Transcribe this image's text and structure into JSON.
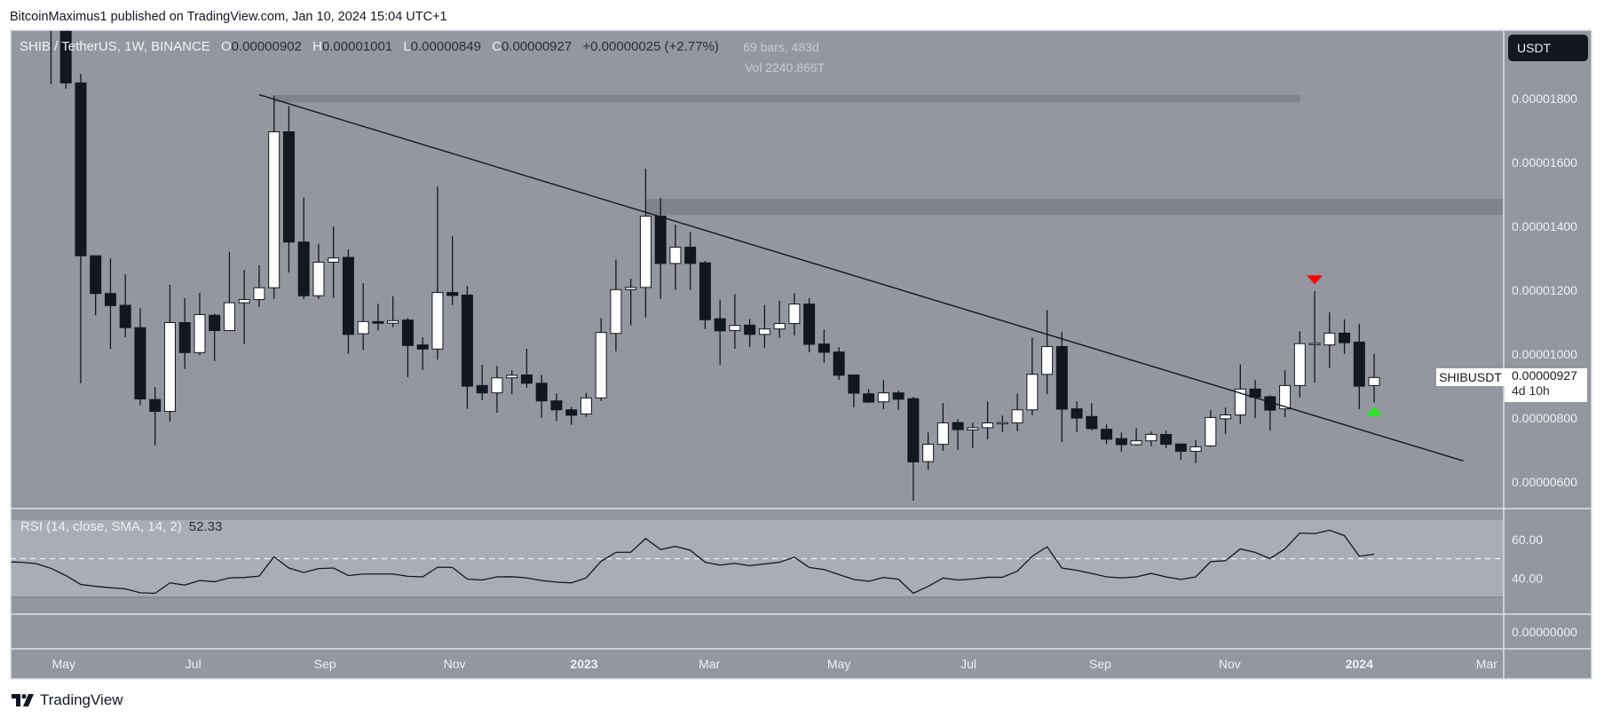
{
  "publisher": "BitcoinMaximus1 published on TradingView.com, Jan 10, 2024 15:04 UTC+1",
  "legend": {
    "symbol": "SHIB / TetherUS, 1W, BINANCE",
    "o_label": "O",
    "o": "0.00000902",
    "h_label": "H",
    "h": "0.00001001",
    "l_label": "L",
    "l": "0.00000849",
    "c_label": "C",
    "c": "0.00000927",
    "change": "+0.00000025 (+2.77%)"
  },
  "measure": {
    "bars": "69 bars, 483d",
    "vol": "Vol 2240.866T"
  },
  "currency_button": "USDT",
  "last_price": {
    "symbol": "SHIBUSDT",
    "value": "0.00000927",
    "countdown": "4d 10h"
  },
  "rsi": {
    "legend": "RSI (14, close, SMA, 14, 2)",
    "value": "52.33",
    "ticks": [
      "60.00",
      "40.00"
    ]
  },
  "lower_pane_tick": "0.00000000",
  "footer_logo": "TradingView",
  "colors": {
    "background": "#94979f",
    "rsi_band": "#aaadb5",
    "zone": "#80838b",
    "candle_down": "#131722",
    "candle_up": "#ffffff",
    "marker_sell": "#ff0000",
    "marker_buy": "#22ee22",
    "axis_text": "#eef0f4"
  },
  "chart_data": {
    "type": "candlestick",
    "interval": "1W",
    "xlim": [
      "2022-04-06",
      "2024-03-09"
    ],
    "ylim": [
      5.17e-06,
      2.014e-05
    ],
    "y_ticks": [
      "0.00001800",
      "0.00001600",
      "0.00001400",
      "0.00001200",
      "0.00001000",
      "0.00000800",
      "0.00000600"
    ],
    "x_ticks": [
      {
        "label": "May",
        "date": "2022-05-01",
        "bold": false
      },
      {
        "label": "Jul",
        "date": "2022-07-01",
        "bold": false
      },
      {
        "label": "Sep",
        "date": "2022-09-01",
        "bold": false
      },
      {
        "label": "Nov",
        "date": "2022-11-01",
        "bold": false
      },
      {
        "label": "2023",
        "date": "2023-01-01",
        "bold": true
      },
      {
        "label": "Mar",
        "date": "2023-03-01",
        "bold": false
      },
      {
        "label": "May",
        "date": "2023-05-01",
        "bold": false
      },
      {
        "label": "Jul",
        "date": "2023-07-01",
        "bold": false
      },
      {
        "label": "Sep",
        "date": "2023-09-01",
        "bold": false
      },
      {
        "label": "Nov",
        "date": "2023-11-01",
        "bold": false
      },
      {
        "label": "2024",
        "date": "2024-01-01",
        "bold": true
      },
      {
        "label": "Mar",
        "date": "2024-03-01",
        "bold": false
      }
    ],
    "ohlc_columns": [
      "date",
      "open",
      "high",
      "low",
      "close"
    ],
    "ohlc": [
      [
        "2022-04-25",
        2.45e-05,
        2.5e-05,
        1.845e-05,
        2.09e-05
      ],
      [
        "2022-05-02",
        2.09e-05,
        2.18e-05,
        1.831e-05,
        1.849e-05
      ],
      [
        "2022-05-09",
        1.849e-05,
        1.877e-05,
        9.09e-06,
        1.308e-05
      ],
      [
        "2022-05-16",
        1.308e-05,
        1.308e-05,
        1.122e-05,
        1.19e-05
      ],
      [
        "2022-05-23",
        1.19e-05,
        1.3e-05,
        1.016e-05,
        1.152e-05
      ],
      [
        "2022-05-30",
        1.153e-05,
        1.25e-05,
        1.053e-05,
        1.083e-05
      ],
      [
        "2022-06-06",
        1.083e-05,
        1.144e-05,
        8.4e-06,
        8.6e-06
      ],
      [
        "2022-06-13",
        8.58e-06,
        8.97e-06,
        7.15e-06,
        8.21e-06
      ],
      [
        "2022-06-20",
        8.21e-06,
        1.217e-05,
        7.89e-06,
        1.099e-05
      ],
      [
        "2022-06-27",
        1.099e-05,
        1.175e-05,
        9.54e-06,
        1.005e-05
      ],
      [
        "2022-07-04",
        1.005e-05,
        1.192e-05,
        9.97e-06,
        1.124e-05
      ],
      [
        "2022-07-11",
        1.122e-05,
        1.127e-05,
        9.79e-06,
        1.074e-05
      ],
      [
        "2022-07-18",
        1.074e-05,
        1.32e-05,
        1.074e-05,
        1.161e-05
      ],
      [
        "2022-07-25",
        1.161e-05,
        1.264e-05,
        1.032e-05,
        1.171e-05
      ],
      [
        "2022-08-01",
        1.171e-05,
        1.278e-05,
        1.148e-05,
        1.208e-05
      ],
      [
        "2022-08-08",
        1.208e-05,
        1.81e-05,
        1.173e-05,
        1.696e-05
      ],
      [
        "2022-08-15",
        1.696e-05,
        1.777e-05,
        1.255e-05,
        1.351e-05
      ],
      [
        "2022-08-22",
        1.351e-05,
        1.49e-05,
        1.173e-05,
        1.183e-05
      ],
      [
        "2022-08-29",
        1.183e-05,
        1.345e-05,
        1.173e-05,
        1.288e-05
      ],
      [
        "2022-09-05",
        1.288e-05,
        1.4e-05,
        1.176e-05,
        1.301e-05
      ],
      [
        "2022-09-12",
        1.303e-05,
        1.328e-05,
        1.002e-05,
        1.062e-05
      ],
      [
        "2022-09-19",
        1.064e-05,
        1.222e-05,
        1.013e-05,
        1.102e-05
      ],
      [
        "2022-09-26",
        1.102e-05,
        1.158e-05,
        1.074e-05,
        1.097e-05
      ],
      [
        "2022-10-03",
        1.097e-05,
        1.181e-05,
        1.085e-05,
        1.105e-05
      ],
      [
        "2022-10-10",
        1.107e-05,
        1.113e-05,
        9.28e-06,
        1.027e-05
      ],
      [
        "2022-10-17",
        1.029e-05,
        1.053e-05,
        9.51e-06,
        1.016e-05
      ],
      [
        "2022-10-24",
        1.016e-05,
        1.525e-05,
        9.83e-06,
        1.193e-05
      ],
      [
        "2022-10-31",
        1.193e-05,
        1.369e-05,
        1.154e-05,
        1.184e-05
      ],
      [
        "2022-11-07",
        1.185e-05,
        1.213e-05,
        8.29e-06,
        9e-06
      ],
      [
        "2022-11-14",
        9.02e-06,
        9.67e-06,
        8.56e-06,
        8.79e-06
      ],
      [
        "2022-11-21",
        8.79e-06,
        9.63e-06,
        8.17e-06,
        9.26e-06
      ],
      [
        "2022-11-28",
        9.26e-06,
        9.5e-06,
        8.75e-06,
        9.34e-06
      ],
      [
        "2022-12-05",
        9.35e-06,
        1.017e-05,
        8.95e-06,
        9.09e-06
      ],
      [
        "2022-12-12",
        9.09e-06,
        9.35e-06,
        8.01e-06,
        8.54e-06
      ],
      [
        "2022-12-19",
        8.54e-06,
        8.77e-06,
        7.91e-06,
        8.26e-06
      ],
      [
        "2022-12-26",
        8.26e-06,
        8.35e-06,
        7.79e-06,
        8.09e-06
      ],
      [
        "2023-01-02",
        8.13e-06,
        8.79e-06,
        8.04e-06,
        8.63e-06
      ],
      [
        "2023-01-09",
        8.63e-06,
        1.113e-05,
        8.54e-06,
        1.068e-05
      ],
      [
        "2023-01-16",
        1.065e-05,
        1.296e-05,
        1.009e-05,
        1.202e-05
      ],
      [
        "2023-01-23",
        1.202e-05,
        1.236e-05,
        1.09e-05,
        1.209e-05
      ],
      [
        "2023-01-30",
        1.209e-05,
        1.58e-05,
        1.115e-05,
        1.432e-05
      ],
      [
        "2023-02-06",
        1.432e-05,
        1.489e-05,
        1.173e-05,
        1.284e-05
      ],
      [
        "2023-02-13",
        1.284e-05,
        1.405e-05,
        1.201e-05,
        1.335e-05
      ],
      [
        "2023-02-20",
        1.335e-05,
        1.383e-05,
        1.201e-05,
        1.284e-05
      ],
      [
        "2023-02-27",
        1.286e-05,
        1.292e-05,
        1.079e-05,
        1.108e-05
      ],
      [
        "2023-03-06",
        1.111e-05,
        1.171e-05,
        9.67e-06,
        1.073e-05
      ],
      [
        "2023-03-13",
        1.074e-05,
        1.188e-05,
        1.017e-05,
        1.09e-05
      ],
      [
        "2023-03-20",
        1.091e-05,
        1.11e-05,
        1.023e-05,
        1.062e-05
      ],
      [
        "2023-03-27",
        1.062e-05,
        1.154e-05,
        1.02e-05,
        1.079e-05
      ],
      [
        "2023-04-03",
        1.079e-05,
        1.167e-05,
        1.051e-05,
        1.096e-05
      ],
      [
        "2023-04-10",
        1.096e-05,
        1.191e-05,
        1.059e-05,
        1.157e-05
      ],
      [
        "2023-04-17",
        1.157e-05,
        1.175e-05,
        1.006e-05,
        1.031e-05
      ],
      [
        "2023-04-24",
        1.032e-05,
        1.077e-05,
        9.73e-06,
        1.006e-05
      ],
      [
        "2023-05-01",
        1.007e-05,
        1.022e-05,
        9.2e-06,
        9.34e-06
      ],
      [
        "2023-05-08",
        9.35e-06,
        9.35e-06,
        8.34e-06,
        8.78e-06
      ],
      [
        "2023-05-15",
        8.76e-06,
        8.91e-06,
        8.47e-06,
        8.5e-06
      ],
      [
        "2023-05-22",
        8.51e-06,
        9.19e-06,
        8.28e-06,
        8.79e-06
      ],
      [
        "2023-05-29",
        8.79e-06,
        8.86e-06,
        8.25e-06,
        8.59e-06
      ],
      [
        "2023-06-05",
        8.61e-06,
        8.66e-06,
        5.42e-06,
        6.63e-06
      ],
      [
        "2023-06-12",
        6.64e-06,
        7.55e-06,
        6.38e-06,
        7.18e-06
      ],
      [
        "2023-06-19",
        7.18e-06,
        8.47e-06,
        6.98e-06,
        7.85e-06
      ],
      [
        "2023-06-26",
        7.86e-06,
        7.97e-06,
        7e-06,
        7.64e-06
      ],
      [
        "2023-07-03",
        7.63e-06,
        7.86e-06,
        7.06e-06,
        7.7e-06
      ],
      [
        "2023-07-10",
        7.7e-06,
        8.52e-06,
        7.34e-06,
        7.85e-06
      ],
      [
        "2023-07-17",
        7.85e-06,
        8.08e-06,
        7.56e-06,
        7.86e-06
      ],
      [
        "2023-07-24",
        7.85e-06,
        8.77e-06,
        7.59e-06,
        8.26e-06
      ],
      [
        "2023-07-31",
        8.26e-06,
        1.052e-05,
        8.09e-06,
        9.37e-06
      ],
      [
        "2023-08-07",
        9.37e-06,
        1.138e-05,
        8.75e-06,
        1.024e-05
      ],
      [
        "2023-08-14",
        1.024e-05,
        1.069e-05,
        7.25e-06,
        8.28e-06
      ],
      [
        "2023-08-21",
        8.29e-06,
        8.52e-06,
        7.56e-06,
        8e-06
      ],
      [
        "2023-08-28",
        8.05e-06,
        8.47e-06,
        7.62e-06,
        7.67e-06
      ],
      [
        "2023-09-04",
        7.65e-06,
        7.8e-06,
        7.19e-06,
        7.34e-06
      ],
      [
        "2023-09-11",
        7.36e-06,
        7.55e-06,
        6.95e-06,
        7.17e-06
      ],
      [
        "2023-09-18",
        7.17e-06,
        7.69e-06,
        7.14e-06,
        7.29e-06
      ],
      [
        "2023-09-25",
        7.29e-06,
        7.58e-06,
        7.12e-06,
        7.49e-06
      ],
      [
        "2023-10-02",
        7.49e-06,
        7.61e-06,
        7.06e-06,
        7.18e-06
      ],
      [
        "2023-10-09",
        7.19e-06,
        7.19e-06,
        6.7e-06,
        6.96e-06
      ],
      [
        "2023-10-16",
        6.96e-06,
        7.31e-06,
        6.59e-06,
        7.1e-06
      ],
      [
        "2023-10-23",
        7.13e-06,
        8.25e-06,
        7.1e-06,
        8.02e-06
      ],
      [
        "2023-10-30",
        7.98e-06,
        8.33e-06,
        7.5e-06,
        8.1e-06
      ],
      [
        "2023-11-06",
        8.1e-06,
        9.68e-06,
        7.82e-06,
        8.91e-06
      ],
      [
        "2023-11-13",
        8.91e-06,
        9.2e-06,
        8e-06,
        8.65e-06
      ],
      [
        "2023-11-20",
        8.67e-06,
        8.71e-06,
        7.61e-06,
        8.25e-06
      ],
      [
        "2023-11-27",
        8.29e-06,
        9.5e-06,
        8.03e-06,
        9.02e-06
      ],
      [
        "2023-12-04",
        9.02e-06,
        1.072e-05,
        8.65e-06,
        1.033e-05
      ],
      [
        "2023-12-11",
        1.032e-05,
        1.197e-05,
        9.11e-06,
        1.034e-05
      ],
      [
        "2023-12-18",
        1.029e-05,
        1.131e-05,
        9.56e-06,
        1.066e-05
      ],
      [
        "2023-12-25",
        1.066e-05,
        1.109e-05,
        1.001e-05,
        1.036e-05
      ],
      [
        "2024-01-01",
        1.038e-05,
        1.095e-05,
        8.28e-06,
        9e-06
      ],
      [
        "2024-01-08",
        9.02e-06,
        1.001e-05,
        8.49e-06,
        9.27e-06
      ]
    ],
    "trendline": {
      "start": [
        "2022-08-01",
        1.812e-05
      ],
      "end": [
        "2024-02-19",
        6.66e-06
      ]
    },
    "zones": [
      {
        "from": "2022-08-08",
        "to": "2023-12-04",
        "top": 1.811e-05,
        "bottom": 1.789e-05,
        "extend_right": false
      },
      {
        "from": "2023-01-30",
        "to": null,
        "top": 1.486e-05,
        "bottom": 1.436e-05,
        "extend_right": true
      }
    ],
    "markers": [
      {
        "date": "2023-12-11",
        "price": 1.219e-05,
        "shape": "triangle-down",
        "color": "#ff0000"
      },
      {
        "date": "2024-01-08",
        "price": 8.36e-06,
        "shape": "triangle-up",
        "color": "#22ee22"
      }
    ],
    "rsi_ylim": [
      21.3,
      76
    ],
    "rsi_band": [
      30,
      70
    ],
    "rsi_mid": 50,
    "rsi_series": [
      [
        "2022-04-04",
        48.3
      ],
      [
        "2022-04-11",
        48.2
      ],
      [
        "2022-04-18",
        47.5
      ],
      [
        "2022-04-25",
        45.0
      ],
      [
        "2022-05-02",
        41.3
      ],
      [
        "2022-05-09",
        36.7
      ],
      [
        "2022-05-16",
        35.7
      ],
      [
        "2022-05-23",
        35.0
      ],
      [
        "2022-05-30",
        34.4
      ],
      [
        "2022-06-06",
        32.4
      ],
      [
        "2022-06-13",
        32.1
      ],
      [
        "2022-06-20",
        37.5
      ],
      [
        "2022-06-27",
        36.4
      ],
      [
        "2022-07-04",
        38.7
      ],
      [
        "2022-07-11",
        38.1
      ],
      [
        "2022-07-18",
        40.1
      ],
      [
        "2022-07-25",
        40.3
      ],
      [
        "2022-08-01",
        41.0
      ],
      [
        "2022-08-08",
        51.0
      ],
      [
        "2022-08-15",
        45.2
      ],
      [
        "2022-08-22",
        42.9
      ],
      [
        "2022-08-29",
        44.9
      ],
      [
        "2022-09-05",
        45.2
      ],
      [
        "2022-09-12",
        41.3
      ],
      [
        "2022-09-19",
        42.1
      ],
      [
        "2022-09-26",
        42.1
      ],
      [
        "2022-10-03",
        42.1
      ],
      [
        "2022-10-10",
        40.9
      ],
      [
        "2022-10-17",
        40.6
      ],
      [
        "2022-10-24",
        45.6
      ],
      [
        "2022-10-31",
        45.5
      ],
      [
        "2022-11-07",
        39.5
      ],
      [
        "2022-11-14",
        39.0
      ],
      [
        "2022-11-21",
        40.6
      ],
      [
        "2022-11-28",
        40.7
      ],
      [
        "2022-12-05",
        40.1
      ],
      [
        "2022-12-12",
        38.7
      ],
      [
        "2022-12-19",
        37.9
      ],
      [
        "2022-12-26",
        37.5
      ],
      [
        "2023-01-02",
        40.1
      ],
      [
        "2023-01-09",
        48.7
      ],
      [
        "2023-01-16",
        53.3
      ],
      [
        "2023-01-23",
        53.4
      ],
      [
        "2023-01-30",
        60.5
      ],
      [
        "2023-02-06",
        54.8
      ],
      [
        "2023-02-13",
        56.4
      ],
      [
        "2023-02-20",
        54.4
      ],
      [
        "2023-02-27",
        48.2
      ],
      [
        "2023-03-06",
        46.7
      ],
      [
        "2023-03-13",
        47.6
      ],
      [
        "2023-03-20",
        46.4
      ],
      [
        "2023-03-27",
        47.3
      ],
      [
        "2023-04-03",
        48.2
      ],
      [
        "2023-04-10",
        50.8
      ],
      [
        "2023-04-17",
        45.5
      ],
      [
        "2023-04-24",
        44.4
      ],
      [
        "2023-05-01",
        41.8
      ],
      [
        "2023-05-08",
        39.3
      ],
      [
        "2023-05-15",
        38.3
      ],
      [
        "2023-05-22",
        40.3
      ],
      [
        "2023-05-29",
        39.4
      ],
      [
        "2023-06-05",
        32.1
      ],
      [
        "2023-06-12",
        35.7
      ],
      [
        "2023-06-19",
        40.0
      ],
      [
        "2023-06-26",
        39.0
      ],
      [
        "2023-07-03",
        39.5
      ],
      [
        "2023-07-10",
        40.4
      ],
      [
        "2023-07-17",
        40.4
      ],
      [
        "2023-07-24",
        43.6
      ],
      [
        "2023-07-31",
        51.3
      ],
      [
        "2023-08-07",
        56.2
      ],
      [
        "2023-08-14",
        45.2
      ],
      [
        "2023-08-21",
        44.0
      ],
      [
        "2023-08-28",
        42.4
      ],
      [
        "2023-09-04",
        40.6
      ],
      [
        "2023-09-11",
        40.1
      ],
      [
        "2023-09-18",
        40.6
      ],
      [
        "2023-09-25",
        42.4
      ],
      [
        "2023-10-02",
        40.6
      ],
      [
        "2023-10-09",
        39.3
      ],
      [
        "2023-10-16",
        40.6
      ],
      [
        "2023-10-23",
        48.5
      ],
      [
        "2023-10-30",
        49.0
      ],
      [
        "2023-11-06",
        55.1
      ],
      [
        "2023-11-13",
        53.3
      ],
      [
        "2023-11-20",
        50.1
      ],
      [
        "2023-11-27",
        55.1
      ],
      [
        "2023-12-04",
        63.3
      ],
      [
        "2023-12-11",
        63.0
      ],
      [
        "2023-12-18",
        64.8
      ],
      [
        "2023-12-25",
        62.0
      ],
      [
        "2024-01-01",
        51.3
      ],
      [
        "2024-01-08",
        52.33
      ]
    ]
  }
}
